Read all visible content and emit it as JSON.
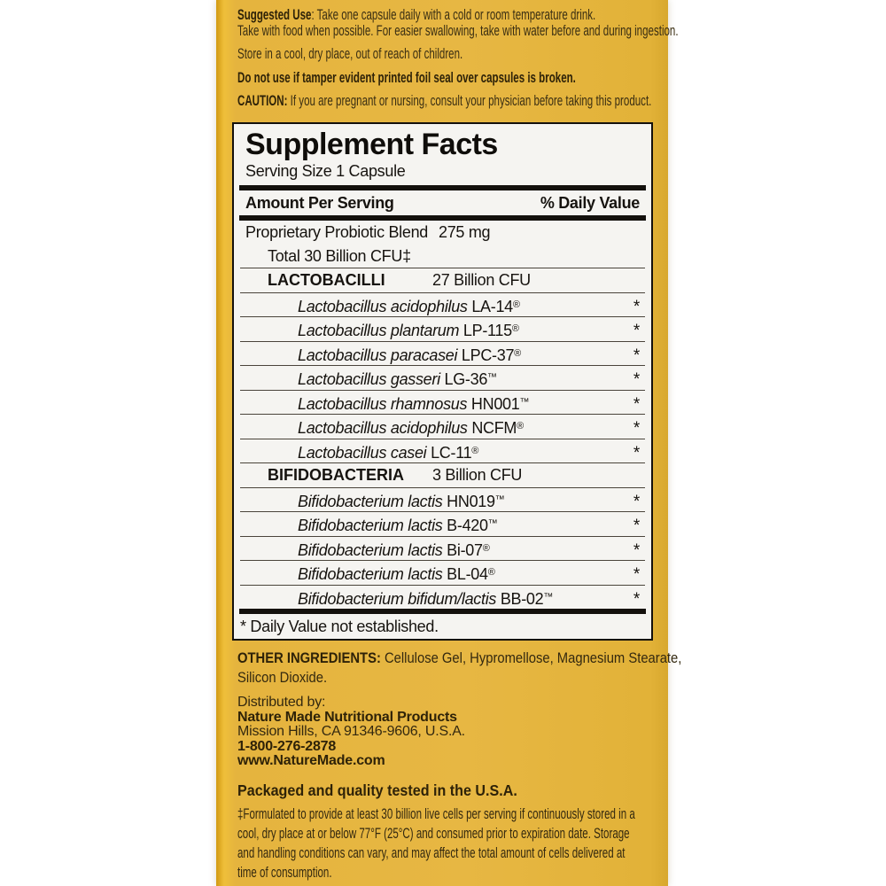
{
  "colors": {
    "label_yellow": "#e5b43e",
    "label_edge_gold": "#d29a12",
    "panel_bg": "#f5f4f1",
    "panel_ink": "#16130f",
    "label_ink": "#392d10"
  },
  "directions": {
    "suggested_use_label": "Suggested Use",
    "suggested_use_line1": ": Take one capsule daily with a cold or room temperature drink.",
    "suggested_use_line2": "Take with food when possible. For easier swallowing, take with water before and during ingestion.",
    "storage": "Store in a cool, dry place, out of reach of children.",
    "tamper": "Do not use if tamper evident printed foil seal over capsules is broken.",
    "caution_label": "CAUTION:",
    "caution_text": " If you are pregnant or nursing, consult your physician before taking this product."
  },
  "facts": {
    "title": "Supplement Facts",
    "serving": "Serving Size 1 Capsule",
    "col_amount": "Amount Per Serving",
    "col_dv": "% Daily Value",
    "blend_name": "Proprietary Probiotic Blend",
    "blend_amount": "275 mg",
    "blend_total": "Total 30 Billion CFU‡",
    "groups": [
      {
        "name": "LACTOBACILLI",
        "amount": "27 Billion CFU"
      },
      {
        "name": "BIFIDOBACTERIA",
        "amount": "3 Billion CFU"
      }
    ],
    "lacto": [
      {
        "species": "Lactobacillus acidophilus",
        "code": "LA-14",
        "mark": "®",
        "dv": "*"
      },
      {
        "species": "Lactobacillus plantarum",
        "code": "LP-115",
        "mark": "®",
        "dv": "*"
      },
      {
        "species": "Lactobacillus paracasei",
        "code": "LPC-37",
        "mark": "®",
        "dv": "*"
      },
      {
        "species": "Lactobacillus gasseri",
        "code": "LG-36",
        "mark": "™",
        "dv": "*"
      },
      {
        "species": "Lactobacillus rhamnosus",
        "code": "HN001",
        "mark": "™",
        "dv": "*"
      },
      {
        "species": "Lactobacillus acidophilus",
        "code": "NCFM",
        "mark": "®",
        "dv": "*"
      },
      {
        "species": "Lactobacillus casei",
        "code": "LC-11",
        "mark": "®",
        "dv": "*"
      }
    ],
    "bifido": [
      {
        "species": "Bifidobacterium lactis",
        "code": "HN019",
        "mark": "™",
        "dv": "*"
      },
      {
        "species": "Bifidobacterium lactis",
        "code": "B-420",
        "mark": "™",
        "dv": "*"
      },
      {
        "species": "Bifidobacterium lactis",
        "code": "Bi-07",
        "mark": "®",
        "dv": "*"
      },
      {
        "species": "Bifidobacterium lactis",
        "code": "BL-04",
        "mark": "®",
        "dv": "*"
      },
      {
        "species": "Bifidobacterium bifidum/lactis",
        "code": "BB-02",
        "mark": "™",
        "dv": "*"
      }
    ],
    "dv_note": "* Daily Value not established."
  },
  "bottom": {
    "other_label": "OTHER INGREDIENTS:",
    "other_line1_rest": " Cellulose Gel, Hypromellose, Magnesium Stearate,",
    "other_line2": "Silicon Dioxide.",
    "distributed_by": "Distributed by:",
    "company": "Nature Made Nutritional Products",
    "address": "Mission Hills, CA 91346-9606, U.S.A.",
    "phone": "1-800-276-2878",
    "website": "www.NatureMade.com",
    "packaged": "Packaged and quality tested in the U.S.A.",
    "footnote_line1": "‡Formulated to provide at least 30 billion live cells per serving if continuously stored in a",
    "footnote_line2": "cool, dry place at or below 77°F (25°C) and consumed prior to expiration date. Storage",
    "footnote_line3": "and handling conditions can vary, and may affect the total amount of cells delivered at",
    "footnote_line4": "time of consumption."
  }
}
